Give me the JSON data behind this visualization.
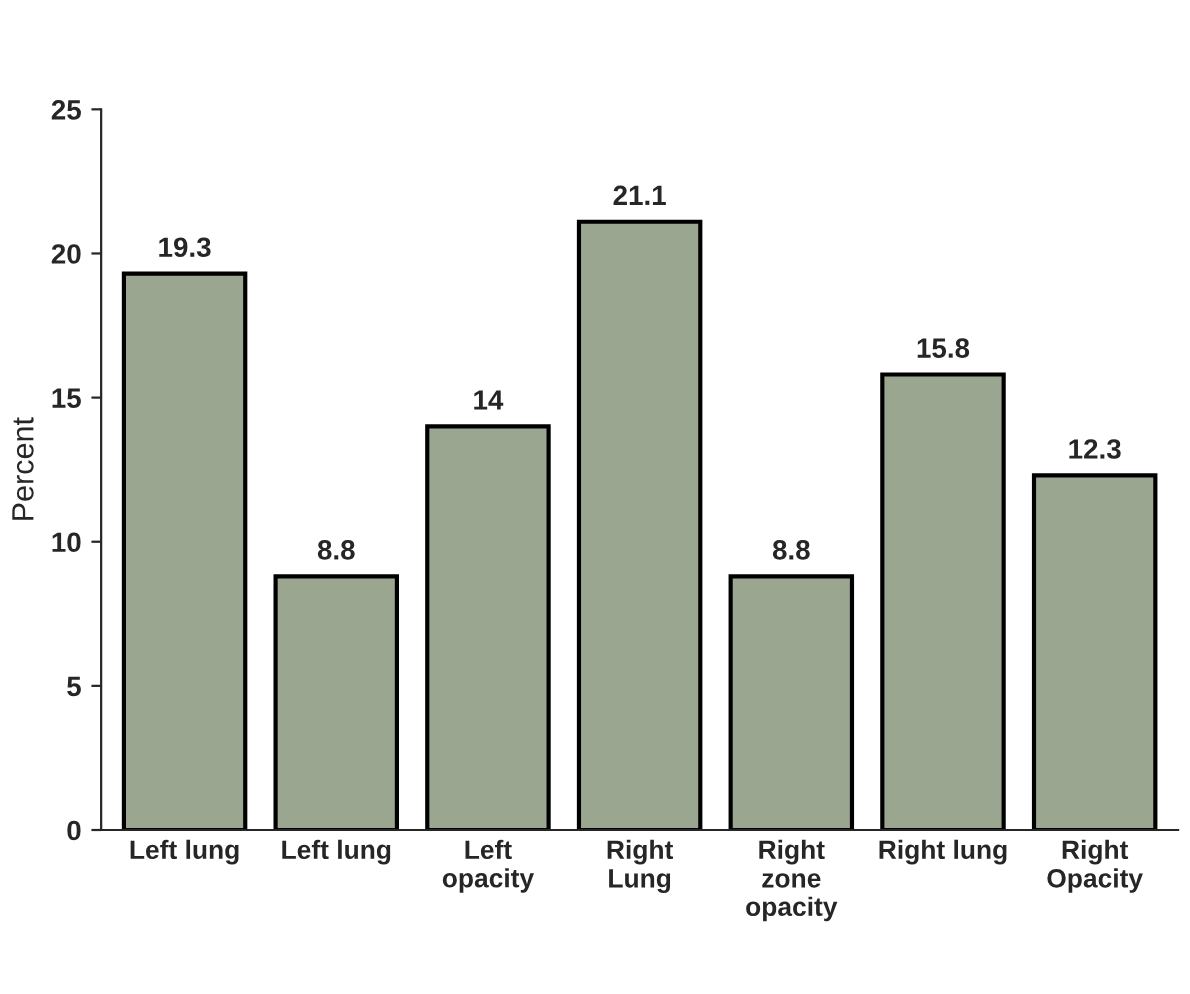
{
  "chart_data": {
    "type": "bar",
    "ylabel": "Percent",
    "categories": [
      "Left lung",
      "Left lung",
      "Left\nopacity",
      "Right\nLung",
      "Right\nzone\nopacity",
      "Right lung",
      "Right\nOpacity"
    ],
    "values": [
      19.3,
      8.8,
      14,
      21.1,
      8.8,
      15.8,
      12.3
    ],
    "color": "#9aa68f",
    "ylim": [
      0,
      25
    ],
    "yticks": [
      0,
      5,
      10,
      15,
      20,
      25
    ],
    "data_labels": true,
    "grid": false,
    "legend": false
  }
}
